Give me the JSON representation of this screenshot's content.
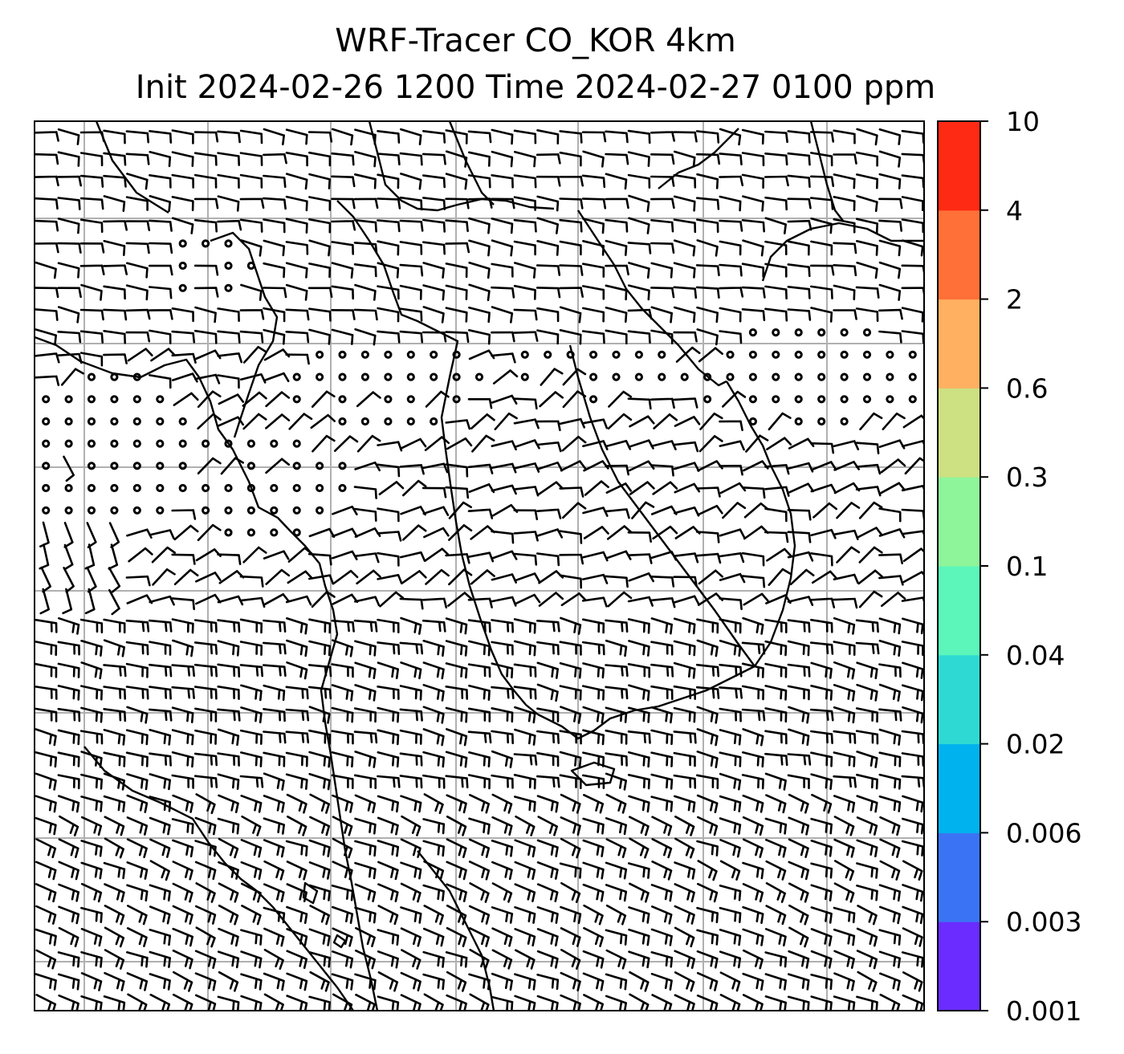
{
  "title": {
    "line1": "WRF-Tracer CO_KOR 4km",
    "line2": "Init 2024-02-26 1200 Time 2024-02-27 0100 ppm"
  },
  "colorbar": {
    "levels": [
      "0.001",
      "0.003",
      "0.006",
      "0.02",
      "0.04",
      "0.1",
      "0.3",
      "0.6",
      "2",
      "4",
      "10"
    ],
    "colors": [
      "#6a2cff",
      "#3a74f4",
      "#00b2ee",
      "#2fd9d3",
      "#5cf6bb",
      "#8ff59b",
      "#cde082",
      "#ffb060",
      "#ff7038",
      "#ff2a14"
    ]
  },
  "map": {
    "wind_barbs": "wind-barb-field",
    "calm_symbol": "calm-circle",
    "gridline_color": "#b0b0b0",
    "coastline_color": "#000000"
  }
}
